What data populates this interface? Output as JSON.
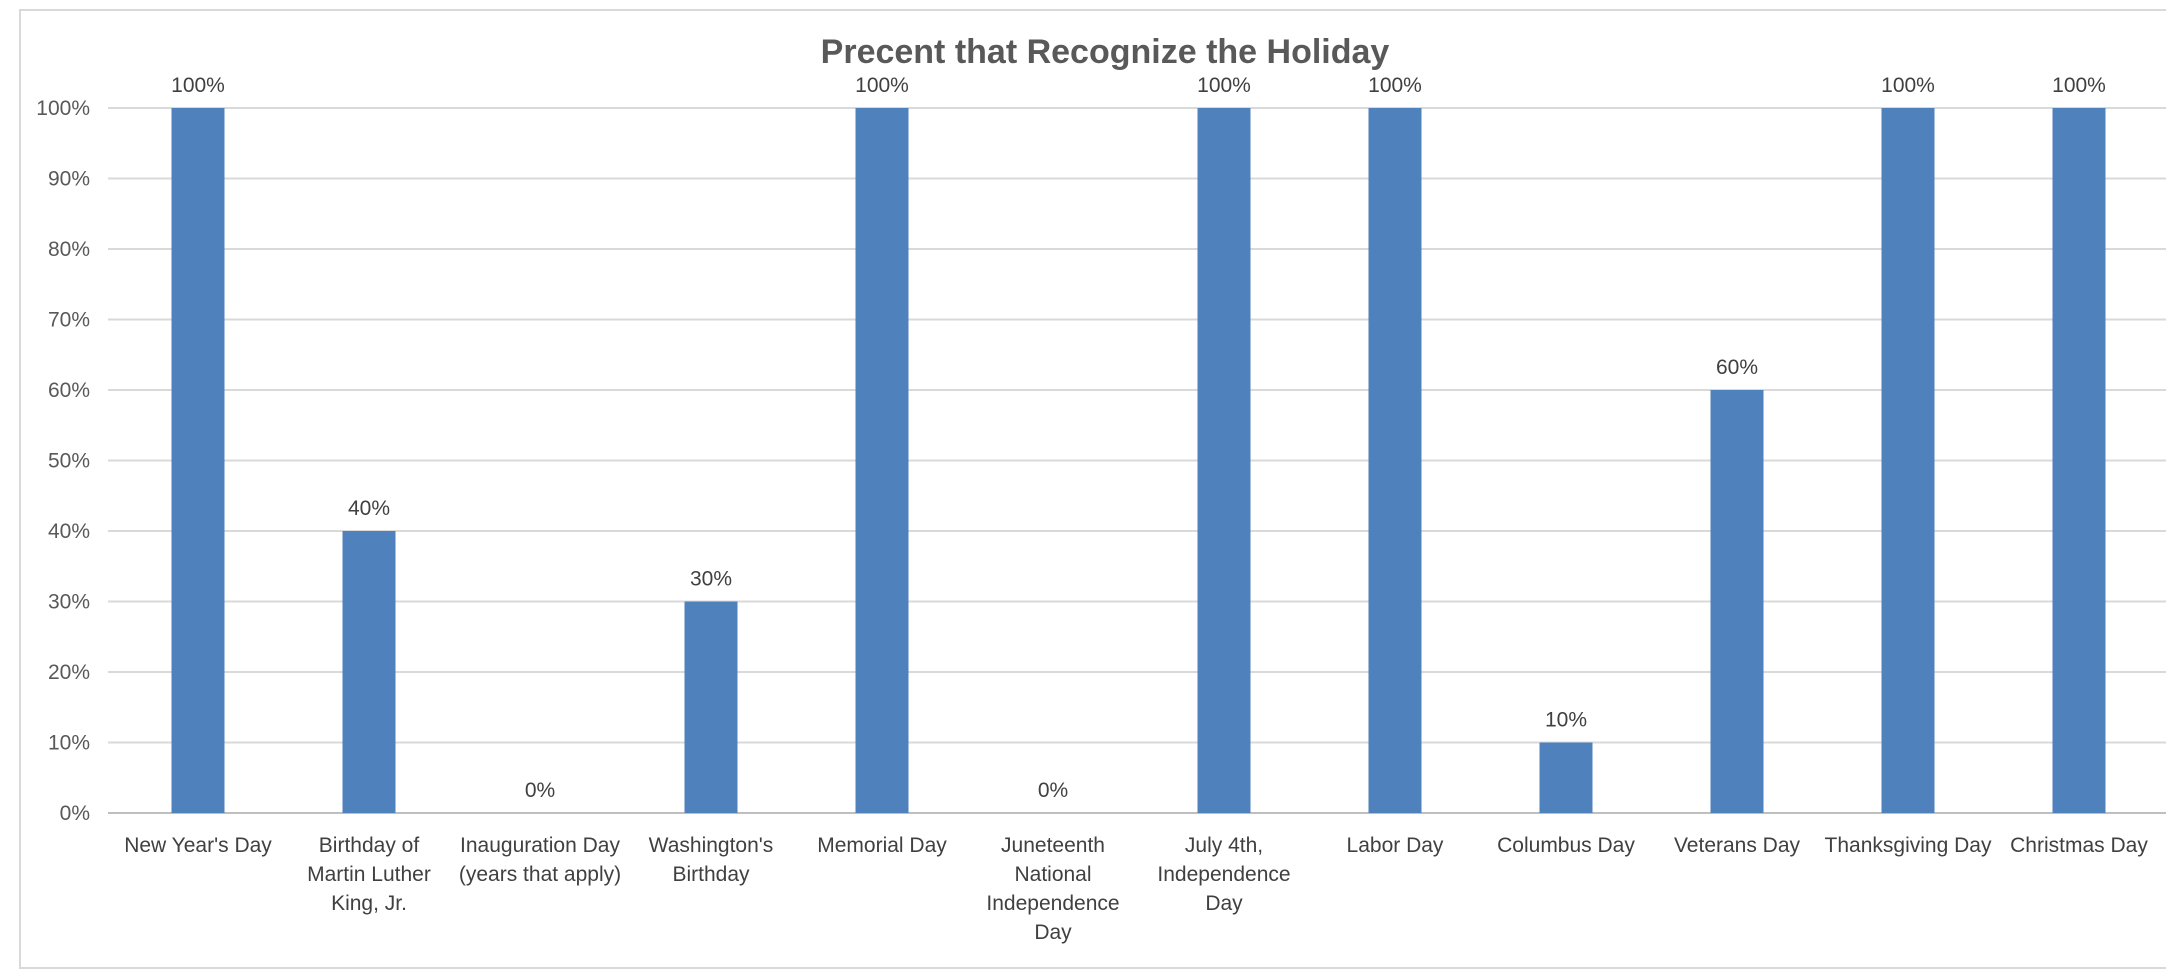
{
  "chart_data": {
    "type": "bar",
    "title": "Precent that Recognize the Holiday",
    "xlabel": "",
    "ylabel": "",
    "ylim": [
      0,
      100
    ],
    "y_tick_step": 10,
    "y_tick_labels": [
      "0%",
      "10%",
      "20%",
      "30%",
      "40%",
      "50%",
      "60%",
      "70%",
      "80%",
      "90%",
      "100%"
    ],
    "grid": true,
    "legend": "none",
    "bar_color": "#4f81bd",
    "categories": [
      [
        "New Year's Day"
      ],
      [
        "Birthday of",
        "Martin Luther",
        "King, Jr."
      ],
      [
        "Inauguration Day",
        "(years that apply)"
      ],
      [
        "Washington's",
        "Birthday"
      ],
      [
        "Memorial Day"
      ],
      [
        "Juneteenth",
        "National",
        "Independence",
        "Day"
      ],
      [
        "July 4th,",
        "Independence",
        "Day"
      ],
      [
        "Labor Day"
      ],
      [
        "Columbus Day"
      ],
      [
        "Veterans Day"
      ],
      [
        "Thanksgiving Day"
      ],
      [
        "Christmas Day"
      ]
    ],
    "values": [
      100,
      40,
      0,
      30,
      100,
      0,
      100,
      100,
      10,
      60,
      100,
      100
    ],
    "data_labels": [
      "100%",
      "40%",
      "0%",
      "30%",
      "100%",
      "0%",
      "100%",
      "100%",
      "10%",
      "60%",
      "100%",
      "100%"
    ]
  }
}
